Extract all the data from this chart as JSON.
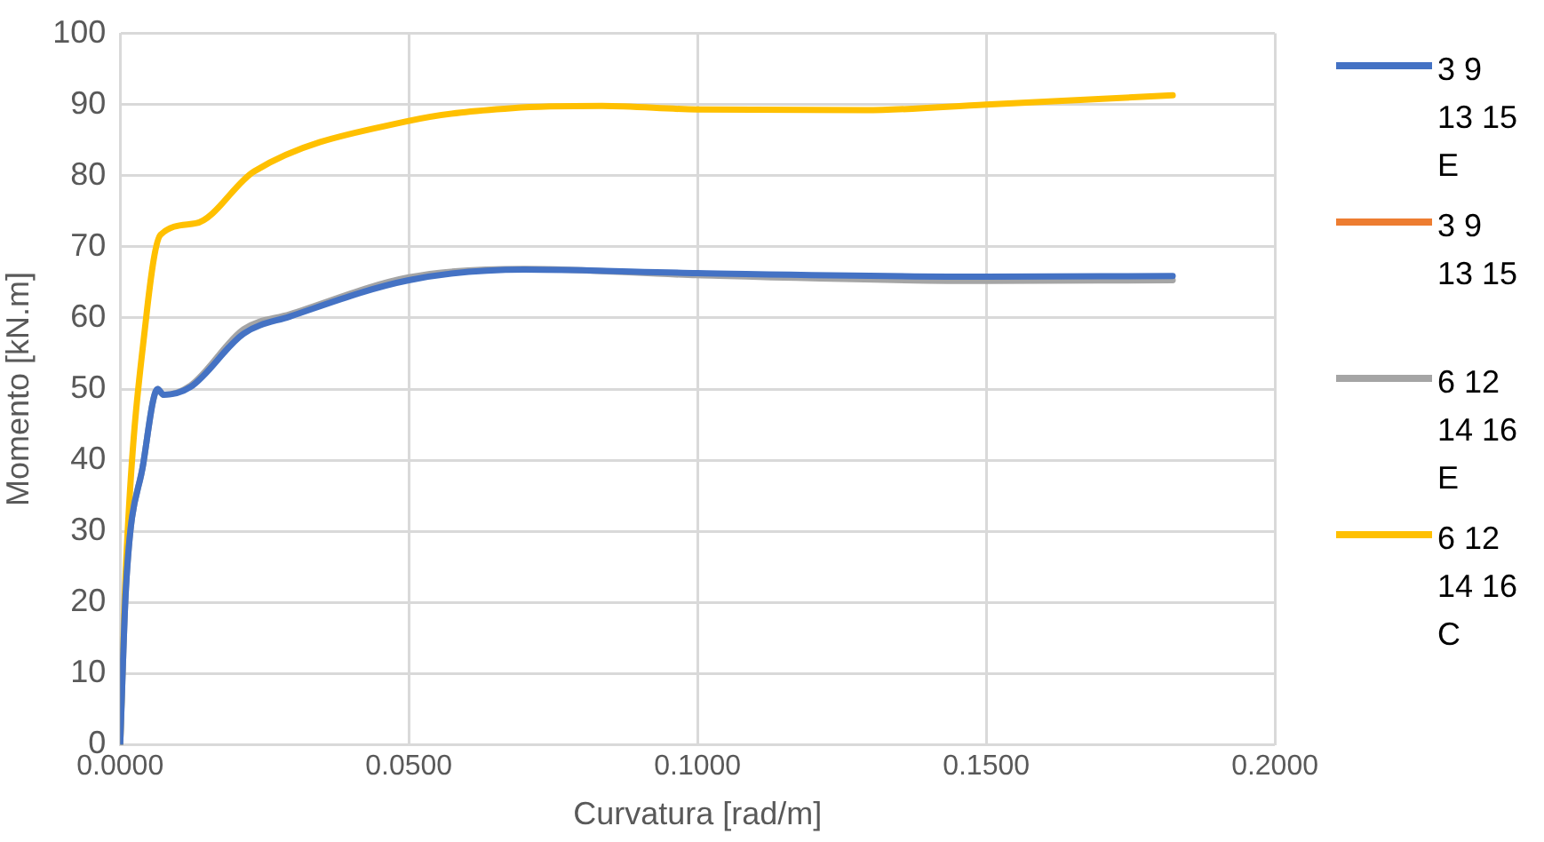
{
  "chart_data": {
    "type": "line",
    "xlabel": "Curvatura [rad/m]",
    "ylabel": "Momento [kN.m]",
    "xlim": [
      0,
      0.2
    ],
    "xticks": [
      {
        "value": 0,
        "label": "0.0000"
      },
      {
        "value": 0.05,
        "label": "0.0500"
      },
      {
        "value": 0.1,
        "label": "0.1000"
      },
      {
        "value": 0.15,
        "label": "0.1500"
      },
      {
        "value": 0.2,
        "label": "0.2000"
      }
    ],
    "ylim": [
      0,
      100
    ],
    "yticks": [
      0,
      10,
      20,
      30,
      40,
      50,
      60,
      70,
      80,
      90,
      100
    ],
    "grid": true,
    "legend": "right",
    "marker": "none",
    "line_style": "solid",
    "series": [
      {
        "name": "3 9 13 15 E",
        "color": "#4472c4",
        "x": [
          0,
          0.001,
          0.004,
          0.0065,
          0.0075,
          0.0122,
          0.0214,
          0.0294,
          0.05,
          0.07,
          0.1,
          0.15,
          0.1823
        ],
        "values": [
          0,
          22,
          39.5,
          50,
          49.2,
          50.3,
          57.8,
          60.2,
          65.3,
          66.8,
          66.3,
          65.8,
          65.9
        ]
      },
      {
        "name": "3 9 13 15",
        "color": "#ed7d31"
      },
      {
        "name": "6 12 14 16 E",
        "color": "#a5a5a5",
        "x": [
          0,
          0.001,
          0.004,
          0.0065,
          0.0075,
          0.0122,
          0.0214,
          0.0294,
          0.05,
          0.07,
          0.1,
          0.15,
          0.1823
        ],
        "values": [
          0,
          22,
          39.5,
          50,
          49.2,
          50.5,
          58.4,
          60.5,
          65.7,
          66.9,
          66.0,
          65.2,
          65.3
        ]
      },
      {
        "name": "6 12 14 16 C",
        "color": "#ffc000",
        "x": [
          0,
          0.001,
          0.0045,
          0.007,
          0.0131,
          0.0232,
          0.05,
          0.068,
          0.0835,
          0.1,
          0.129,
          0.15,
          0.1823
        ],
        "values": [
          0,
          25,
          60,
          71.7,
          73.3,
          80.6,
          87.7,
          89.5,
          89.8,
          89.3,
          89.2,
          90.0,
          91.3
        ]
      }
    ]
  }
}
